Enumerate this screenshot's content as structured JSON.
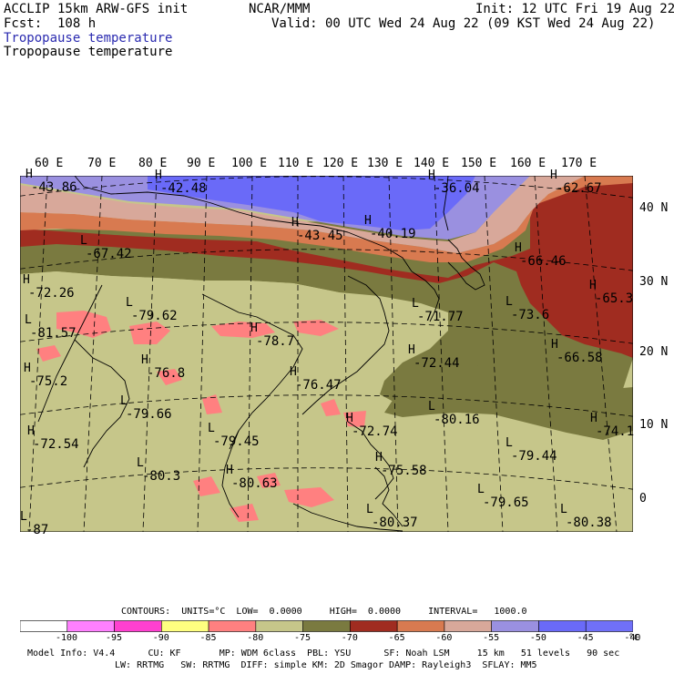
{
  "header": {
    "model": "ACCLIP 15km ARW-GFS init",
    "forecast": "Fcst:  108 h",
    "org": "NCAR/MMM",
    "init": "Init: 12 UTC Fri 19 Aug 22",
    "valid": "Valid: 00 UTC Wed 24 Aug 22 (09 KST Wed 24 Aug 22)",
    "field1": "Tropopause temperature",
    "field2": "Tropopause temperature",
    "field1_color": "#2b2bb0"
  },
  "map": {
    "lon_labels": [
      "60 E",
      "70 E",
      "80 E",
      "90 E",
      "100 E",
      "110 E",
      "120 E",
      "130 E",
      "140 E",
      "150 E",
      "160 E",
      "170 E"
    ],
    "lat_labels": [
      "40 N",
      "30 N",
      "20 N",
      "10 N",
      "0"
    ],
    "highs_lows": [
      {
        "type": "H",
        "value": "-43.86"
      },
      {
        "type": "H",
        "value": "-42.48"
      },
      {
        "type": "H",
        "value": "-36.04"
      },
      {
        "type": "H",
        "value": "-62.67"
      },
      {
        "type": "H",
        "value": "-43.45"
      },
      {
        "type": "H",
        "value": "-40.19"
      },
      {
        "type": "L",
        "value": "-67.42"
      },
      {
        "type": "H",
        "value": "-66.46"
      },
      {
        "type": "H",
        "value": "-72.26"
      },
      {
        "type": "H",
        "value": "-65.3"
      },
      {
        "type": "L",
        "value": "-79.62"
      },
      {
        "type": "L",
        "value": "-71.77"
      },
      {
        "type": "L",
        "value": "-73.6"
      },
      {
        "type": "L",
        "value": "-81.57"
      },
      {
        "type": "H",
        "value": "-78.7"
      },
      {
        "type": "H",
        "value": "-72.44"
      },
      {
        "type": "H",
        "value": "-66.58"
      },
      {
        "type": "H",
        "value": "-76.8"
      },
      {
        "type": "H",
        "value": "-75.2"
      },
      {
        "type": "H",
        "value": "-76.47"
      },
      {
        "type": "L",
        "value": "-79.66"
      },
      {
        "type": "L",
        "value": "-80.16"
      },
      {
        "type": "H",
        "value": "-74.1"
      },
      {
        "type": "H",
        "value": "-72.74"
      },
      {
        "type": "H",
        "value": "-72.54"
      },
      {
        "type": "L",
        "value": "-79.45"
      },
      {
        "type": "L",
        "value": "-79.44"
      },
      {
        "type": "L",
        "value": "-80.3"
      },
      {
        "type": "H",
        "value": "-80.63"
      },
      {
        "type": "H",
        "value": "-75.58"
      },
      {
        "type": "L",
        "value": "-79.65"
      },
      {
        "type": "L",
        "value": "-80.37"
      },
      {
        "type": "L",
        "value": "-80.38"
      },
      {
        "type": "L",
        "value": "-87"
      }
    ]
  },
  "colorbar": {
    "contours": "CONTOURS:  UNITS=°C  LOW=  0.0000     HIGH=  0.0000     INTERVAL=   1000.0",
    "ticks": [
      "-100",
      "-95",
      "-90",
      "-85",
      "-80",
      "-75",
      "-70",
      "-65",
      "-60",
      "-55",
      "-50",
      "-45",
      "-40"
    ],
    "unit": "°C",
    "colors": [
      "#ffffff",
      "#ff80ff",
      "#ff40d0",
      "#ffff80",
      "#ff8080",
      "#c6c68a",
      "#7a7a40",
      "#a02c20",
      "#d87a50",
      "#d8a89a",
      "#9a90e0",
      "#6a6af8",
      "#7070f8"
    ]
  },
  "info": {
    "line1": "Model Info: V4.4      CU: KF       MP: WDM 6class  PBL: YSU      SF: Noah LSM     15 km   51 levels   90 sec",
    "line2": "LW: RRTMG   SW: RRTMG  DIFF: simple KM: 2D Smagor DAMP: Rayleigh3  SFLAY: MM5"
  }
}
